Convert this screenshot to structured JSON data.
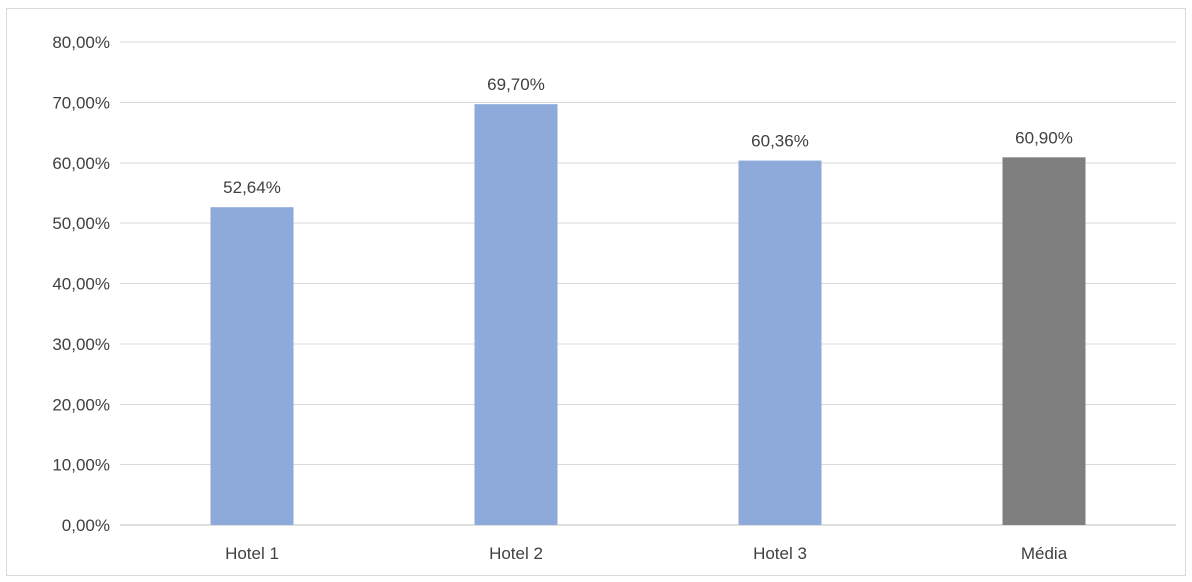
{
  "chart_data": {
    "type": "bar",
    "categories": [
      "Hotel 1",
      "Hotel 2",
      "Hotel 3",
      "Média"
    ],
    "values": [
      52.64,
      69.7,
      60.36,
      60.9
    ],
    "data_labels": [
      "52,64%",
      "69,70%",
      "60,36%",
      "60,90%"
    ],
    "ylim": [
      0,
      80
    ],
    "yticks": [
      0,
      10,
      20,
      30,
      40,
      50,
      60,
      70,
      80
    ],
    "ytick_labels": [
      "0,00%",
      "10,00%",
      "20,00%",
      "30,00%",
      "40,00%",
      "50,00%",
      "60,00%",
      "70,00%",
      "80,00%"
    ],
    "grid": true,
    "legend": "none",
    "colors": [
      "#8eaadb",
      "#8eaadb",
      "#8eaadb",
      "#7f7f7f"
    ],
    "gridline_color": "#d9d9d9",
    "axis_line_color": "#bfbfbf",
    "text_color": "#404040"
  }
}
